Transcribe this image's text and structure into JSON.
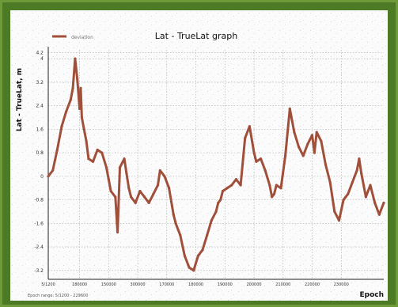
{
  "chart_data": {
    "type": "line",
    "title": "Lat - TrueLat graph",
    "xlabel": "Epoch",
    "ylabel": "Lat - TrueLat, m",
    "legend": {
      "entries": [
        "deviation"
      ],
      "placement": "top-left"
    },
    "grid": true,
    "ylim": [
      -3.5,
      4.3
    ],
    "yticks": [
      "4.2",
      "4",
      "3.2",
      "2.4",
      "1.6",
      "0.8",
      "0",
      "-0.8",
      "-1.6",
      "-2.4",
      "-3.2"
    ],
    "ytick_values": [
      4.2,
      4.0,
      3.2,
      2.4,
      1.6,
      0.8,
      0.0,
      -0.8,
      -1.6,
      -2.4,
      -3.2
    ],
    "xlim": [
      0,
      300
    ],
    "xticks": [
      "5/1200",
      "180000",
      "150000",
      "300000",
      "170000",
      "180000",
      "190000",
      "200000",
      "210000",
      "220000",
      "230000"
    ],
    "xtick_values": [
      0,
      28,
      54,
      80,
      106,
      132,
      158,
      184,
      210,
      236,
      262
    ],
    "footnote": "Epoch range: 5/1200 - 229600",
    "colors": {
      "series": "#a0503a",
      "grid": "#a8a8a8",
      "frame": "#4d7a24"
    },
    "series": [
      {
        "name": "deviation",
        "x": [
          0,
          4,
          8,
          12,
          16,
          20,
          22,
          24,
          26,
          28,
          29,
          30,
          32,
          34,
          36,
          40,
          44,
          48,
          52,
          54,
          56,
          60,
          62,
          64,
          68,
          70,
          72,
          74,
          78,
          82,
          86,
          90,
          94,
          98,
          100,
          104,
          108,
          112,
          114,
          118,
          122,
          126,
          130,
          134,
          138,
          142,
          146,
          150,
          152,
          154,
          156,
          160,
          164,
          168,
          172,
          176,
          180,
          184,
          186,
          190,
          194,
          198,
          200,
          202,
          204,
          208,
          212,
          216,
          220,
          224,
          228,
          232,
          236,
          238,
          240,
          244,
          248,
          252,
          256,
          260,
          264,
          266,
          268,
          272,
          276,
          278,
          280,
          284,
          288,
          292,
          296,
          300
        ],
        "y": [
          0,
          0.2,
          0.9,
          1.7,
          2.2,
          2.6,
          3.0,
          4.0,
          3.3,
          2.3,
          3.0,
          2.0,
          1.6,
          1.2,
          0.6,
          0.5,
          0.9,
          0.8,
          0.3,
          -0.1,
          -0.5,
          -0.7,
          -1.9,
          0.3,
          0.6,
          0.1,
          -0.4,
          -0.7,
          -0.9,
          -0.5,
          -0.7,
          -0.9,
          -0.6,
          -0.3,
          0.2,
          0.0,
          -0.4,
          -1.3,
          -1.6,
          -2.0,
          -2.7,
          -3.1,
          -3.2,
          -2.7,
          -2.5,
          -2.0,
          -1.5,
          -1.2,
          -0.9,
          -0.8,
          -0.5,
          -0.4,
          -0.3,
          -0.1,
          -0.3,
          1.3,
          1.7,
          0.8,
          0.5,
          0.6,
          0.2,
          -0.3,
          -0.7,
          -0.6,
          -0.3,
          -0.4,
          0.7,
          2.3,
          1.5,
          1.0,
          0.7,
          1.1,
          1.4,
          0.8,
          1.5,
          1.2,
          0.4,
          -0.2,
          -1.2,
          -1.5,
          -0.8,
          -0.7,
          -0.6,
          -0.2,
          0.2,
          0.6,
          0.1,
          -0.7,
          -0.3,
          -0.9,
          -1.3,
          -0.9
        ]
      }
    ]
  }
}
